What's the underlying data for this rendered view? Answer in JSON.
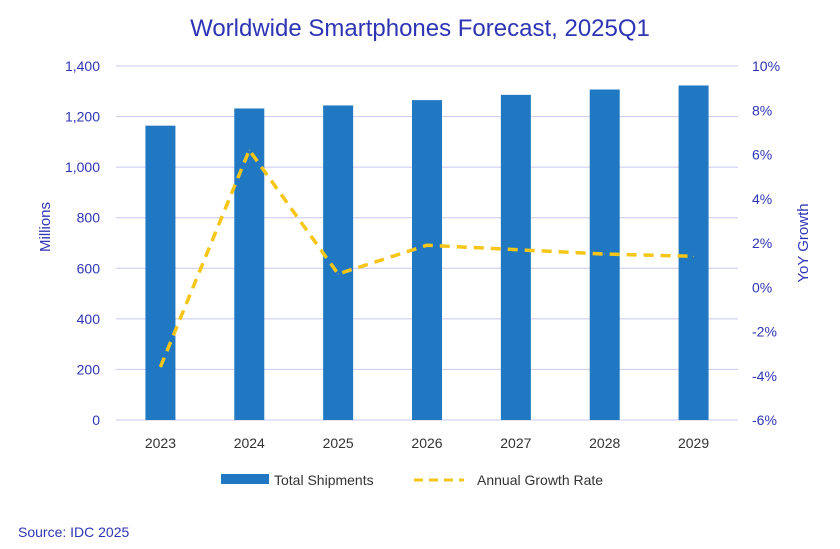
{
  "chart_data": {
    "type": "bar",
    "title": "Worldwide Smartphones Forecast, 2025Q1",
    "categories": [
      "2023",
      "2024",
      "2025",
      "2026",
      "2027",
      "2028",
      "2029"
    ],
    "series": [
      {
        "name": "Total Shipments",
        "type": "bar",
        "axis": "left",
        "values": [
          1164,
          1232,
          1244,
          1265,
          1286,
          1307,
          1323
        ]
      },
      {
        "name": "Annual Growth Rate",
        "type": "line",
        "style": "dashed",
        "axis": "right",
        "values": [
          -3.6,
          6.2,
          0.6,
          1.9,
          1.7,
          1.5,
          1.4
        ]
      }
    ],
    "ylabel": "Millions",
    "ylim": [
      0,
      1400
    ],
    "yticks": [
      "0",
      "200",
      "400",
      "600",
      "800",
      "1,000",
      "1,200",
      "1,400"
    ],
    "y2label": "YoY Growth",
    "y2lim": [
      -6,
      10
    ],
    "y2ticks": [
      "-6%",
      "-4%",
      "-2%",
      "0%",
      "2%",
      "4%",
      "6%",
      "8%",
      "10%"
    ],
    "legend_position": "bottom",
    "grid": true,
    "source": "Source: IDC 2025",
    "colors": {
      "bar": "#1f78c1",
      "line": "#f5c518",
      "text": "#2e35b5",
      "grid": "#c8c8f0"
    }
  }
}
